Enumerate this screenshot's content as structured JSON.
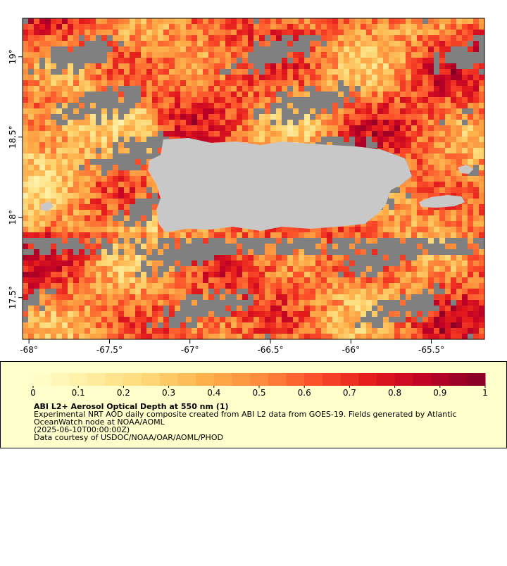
{
  "map": {
    "xlim": [
      -68.04,
      -65.17
    ],
    "ylim": [
      17.24,
      19.24
    ],
    "xticks": [
      {
        "value": -68,
        "label": "-68°"
      },
      {
        "value": -67.5,
        "label": "-67.5°"
      },
      {
        "value": -67,
        "label": "-67°"
      },
      {
        "value": -66.5,
        "label": "-66.5°"
      },
      {
        "value": -66,
        "label": "-66°"
      },
      {
        "value": -65.5,
        "label": "-65.5°"
      }
    ],
    "yticks": [
      {
        "value": 17.5,
        "label": "17.5°"
      },
      {
        "value": 18,
        "label": "18°"
      },
      {
        "value": 18.5,
        "label": "18.5°"
      },
      {
        "value": 19,
        "label": "19°"
      }
    ]
  },
  "colorbar": {
    "range": [
      0,
      1
    ],
    "ticks": [
      0,
      0.1,
      0.2,
      0.3,
      0.4,
      0.5,
      0.6,
      0.7,
      0.8,
      0.9,
      1
    ],
    "colors": [
      "#ffffcc",
      "#ffeda0",
      "#fed976",
      "#feb24c",
      "#fd8d3c",
      "#fc4e2a",
      "#e31a1c",
      "#bd0026",
      "#800026"
    ]
  },
  "legend": {
    "title": "ABI L2+ Aerosol Optical Depth at 550 nm (1)",
    "lines": [
      "Experimental NRT AOD daily composite created from ABI L2 data from GOES-19. Fields generated by Atlantic",
      "OceanWatch node at NOAA/AOML",
      "(2025-06-10T00:00:00Z)",
      "Data courtesy of USDOC/NOAA/OAR/AOML/PHOD"
    ]
  }
}
